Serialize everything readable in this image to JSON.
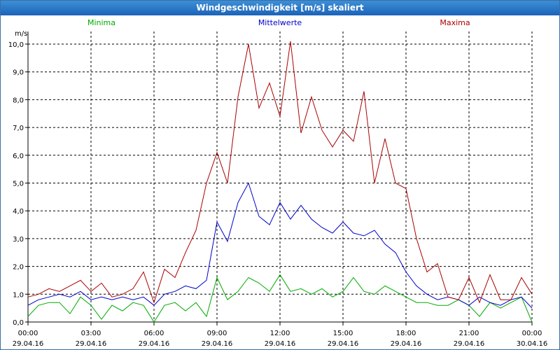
{
  "window": {
    "title": "Windgeschwindigkeit [m/s] skaliert"
  },
  "chart_data": {
    "type": "line",
    "title": "Windgeschwindigkeit [m/s] skaliert",
    "ylabel": "m/s",
    "xlabel": "",
    "ylim": [
      0,
      10
    ],
    "y_ticks": [
      "0,0",
      "1,0",
      "2,0",
      "3,0",
      "4,0",
      "5,0",
      "6,0",
      "7,0",
      "8,0",
      "9,0",
      "10,0"
    ],
    "x_tick_times": [
      "00:00",
      "03:00",
      "06:00",
      "09:00",
      "12:00",
      "15:00",
      "18:00",
      "21:00",
      "00:00"
    ],
    "x_tick_dates": [
      "29.04.16",
      "29.04.16",
      "29.04.16",
      "29.04.16",
      "29.04.16",
      "29.04.16",
      "29.04.16",
      "29.04.16",
      "30.04.16"
    ],
    "x_hours_range": [
      0,
      24
    ],
    "grid": true,
    "grid_style": "dashed",
    "legend_position": "top",
    "series": [
      {
        "name": "Minima",
        "color": "#00aa00",
        "x": [
          0,
          0.5,
          1,
          1.5,
          2,
          2.5,
          3,
          3.5,
          4,
          4.5,
          5,
          5.5,
          6,
          6.5,
          7,
          7.5,
          8,
          8.5,
          9,
          9.5,
          10,
          10.5,
          11,
          11.5,
          12,
          12.5,
          13,
          13.5,
          14,
          14.5,
          15,
          15.5,
          16,
          16.5,
          17,
          17.5,
          18,
          18.5,
          19,
          19.5,
          20,
          20.5,
          21,
          21.5,
          22,
          22.5,
          23,
          23.5,
          24
        ],
        "values": [
          0.2,
          0.6,
          0.7,
          0.7,
          0.3,
          0.9,
          0.6,
          0.1,
          0.6,
          0.4,
          0.7,
          0.6,
          0.0,
          0.6,
          0.7,
          0.4,
          0.7,
          0.2,
          1.6,
          0.8,
          1.1,
          1.6,
          1.4,
          1.1,
          1.7,
          1.1,
          1.2,
          1.0,
          1.2,
          0.9,
          1.1,
          1.6,
          1.1,
          1.0,
          1.3,
          1.1,
          0.9,
          0.7,
          0.7,
          0.6,
          0.6,
          0.8,
          0.6,
          0.2,
          0.7,
          0.5,
          0.7,
          0.9,
          0.0
        ]
      },
      {
        "name": "Mittelwerte",
        "color": "#0000cc",
        "x": [
          0,
          0.5,
          1,
          1.5,
          2,
          2.5,
          3,
          3.5,
          4,
          4.5,
          5,
          5.5,
          6,
          6.5,
          7,
          7.5,
          8,
          8.5,
          9,
          9.5,
          10,
          10.5,
          11,
          11.5,
          12,
          12.5,
          13,
          13.5,
          14,
          14.5,
          15,
          15.5,
          16,
          16.5,
          17,
          17.5,
          18,
          18.5,
          19,
          19.5,
          20,
          20.5,
          21,
          21.5,
          22,
          22.5,
          23,
          23.5,
          24
        ],
        "values": [
          0.6,
          0.8,
          0.9,
          1.0,
          0.9,
          1.1,
          0.8,
          0.9,
          0.8,
          0.9,
          0.8,
          0.9,
          0.6,
          1.0,
          1.1,
          1.3,
          1.2,
          1.5,
          3.6,
          2.9,
          4.3,
          5.0,
          3.8,
          3.5,
          4.3,
          3.7,
          4.2,
          3.7,
          3.4,
          3.2,
          3.6,
          3.2,
          3.1,
          3.3,
          2.8,
          2.5,
          1.8,
          1.3,
          1.0,
          0.8,
          0.9,
          0.8,
          0.6,
          0.9,
          0.7,
          0.6,
          0.8,
          0.9,
          0.5
        ]
      },
      {
        "name": "Maxima",
        "color": "#aa0000",
        "x": [
          0,
          0.5,
          1,
          1.5,
          2,
          2.5,
          3,
          3.5,
          4,
          4.5,
          5,
          5.5,
          6,
          6.5,
          7,
          7.5,
          8,
          8.5,
          9,
          9.5,
          10,
          10.5,
          11,
          11.5,
          12,
          12.5,
          13,
          13.5,
          14,
          14.5,
          15,
          15.5,
          16,
          16.5,
          17,
          17.5,
          18,
          18.5,
          19,
          19.5,
          20,
          20.5,
          21,
          21.5,
          22,
          22.5,
          23,
          23.5,
          24
        ],
        "values": [
          0.9,
          1.0,
          1.2,
          1.1,
          1.3,
          1.5,
          1.1,
          1.4,
          0.9,
          1.0,
          1.2,
          1.8,
          0.7,
          1.9,
          1.6,
          2.5,
          3.3,
          5.0,
          6.1,
          5.0,
          8.1,
          10.0,
          7.7,
          8.6,
          7.4,
          10.1,
          6.8,
          8.1,
          6.9,
          6.3,
          6.9,
          6.5,
          8.3,
          5.0,
          6.6,
          5.0,
          4.8,
          3.0,
          1.8,
          2.1,
          0.9,
          0.8,
          1.6,
          0.7,
          1.7,
          0.8,
          0.8,
          1.6,
          1.0
        ]
      }
    ]
  }
}
